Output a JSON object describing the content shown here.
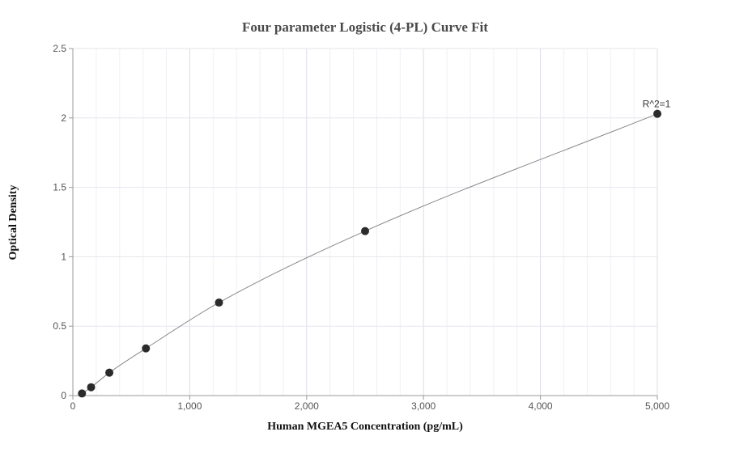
{
  "chart_data": {
    "type": "scatter",
    "title": "Four parameter Logistic (4-PL) Curve Fit",
    "xlabel": "Human MGEA5 Concentration (pg/mL)",
    "ylabel": "Optical Density",
    "xlim": [
      0,
      5000
    ],
    "ylim": [
      0,
      2.5
    ],
    "x_ticks": [
      0,
      1000,
      2000,
      3000,
      4000,
      5000
    ],
    "x_tick_labels": [
      "0",
      "1,000",
      "2,000",
      "3,000",
      "4,000",
      "5,000"
    ],
    "y_ticks": [
      0,
      0.5,
      1,
      1.5,
      2,
      2.5
    ],
    "y_tick_labels": [
      "0",
      "0.5",
      "1",
      "1.5",
      "2",
      "2.5"
    ],
    "grid": true,
    "points": [
      {
        "x": 78,
        "y": 0.015
      },
      {
        "x": 156,
        "y": 0.06
      },
      {
        "x": 312,
        "y": 0.165
      },
      {
        "x": 625,
        "y": 0.34
      },
      {
        "x": 1250,
        "y": 0.67
      },
      {
        "x": 2500,
        "y": 1.185
      },
      {
        "x": 5000,
        "y": 2.03
      }
    ],
    "fit_curve": {
      "model": "4-PL"
    },
    "annotation": "R^2=1",
    "colors": {
      "point": "#2b2b2b",
      "curve": "#888888",
      "grid": "#e6e6ee",
      "axis": "#999999"
    }
  }
}
